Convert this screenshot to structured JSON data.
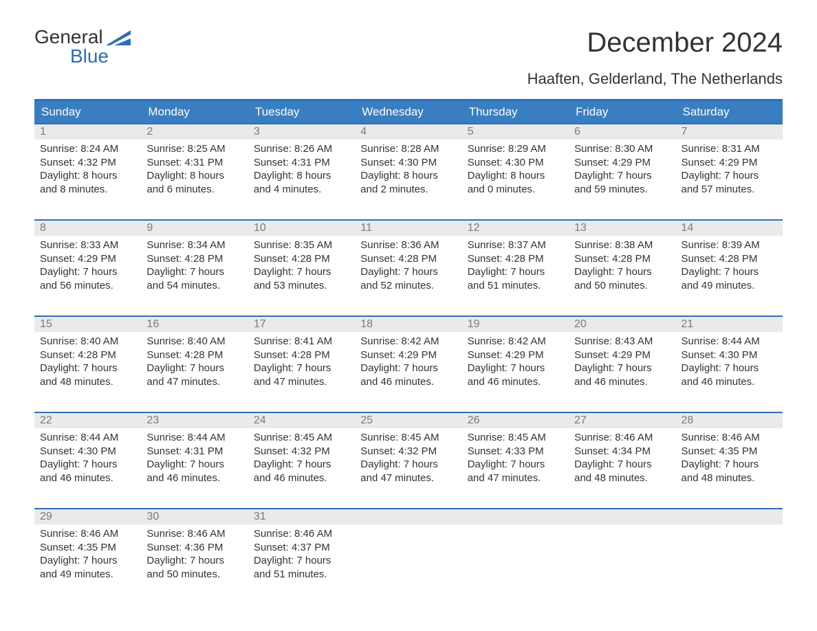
{
  "logo": {
    "text_top": "General",
    "text_bottom": "Blue",
    "flag_color": "#2c6fb5"
  },
  "title": "December 2024",
  "subtitle": "Haaften, Gelderland, The Netherlands",
  "colors": {
    "header_bg": "#3a7ec2",
    "header_text": "#ffffff",
    "accent_border": "#2c6fb5",
    "daynum_bg": "#e9eaeb",
    "daynum_text": "#7a7a7a",
    "body_text": "#333333",
    "background": "#ffffff"
  },
  "typography": {
    "title_fontsize": 40,
    "subtitle_fontsize": 22,
    "dayhead_fontsize": 17,
    "daynum_fontsize": 16,
    "detail_fontsize": 15
  },
  "day_headers": [
    "Sunday",
    "Monday",
    "Tuesday",
    "Wednesday",
    "Thursday",
    "Friday",
    "Saturday"
  ],
  "weeks": [
    [
      {
        "num": "1",
        "sunrise": "Sunrise: 8:24 AM",
        "sunset": "Sunset: 4:32 PM",
        "d1": "Daylight: 8 hours",
        "d2": "and 8 minutes."
      },
      {
        "num": "2",
        "sunrise": "Sunrise: 8:25 AM",
        "sunset": "Sunset: 4:31 PM",
        "d1": "Daylight: 8 hours",
        "d2": "and 6 minutes."
      },
      {
        "num": "3",
        "sunrise": "Sunrise: 8:26 AM",
        "sunset": "Sunset: 4:31 PM",
        "d1": "Daylight: 8 hours",
        "d2": "and 4 minutes."
      },
      {
        "num": "4",
        "sunrise": "Sunrise: 8:28 AM",
        "sunset": "Sunset: 4:30 PM",
        "d1": "Daylight: 8 hours",
        "d2": "and 2 minutes."
      },
      {
        "num": "5",
        "sunrise": "Sunrise: 8:29 AM",
        "sunset": "Sunset: 4:30 PM",
        "d1": "Daylight: 8 hours",
        "d2": "and 0 minutes."
      },
      {
        "num": "6",
        "sunrise": "Sunrise: 8:30 AM",
        "sunset": "Sunset: 4:29 PM",
        "d1": "Daylight: 7 hours",
        "d2": "and 59 minutes."
      },
      {
        "num": "7",
        "sunrise": "Sunrise: 8:31 AM",
        "sunset": "Sunset: 4:29 PM",
        "d1": "Daylight: 7 hours",
        "d2": "and 57 minutes."
      }
    ],
    [
      {
        "num": "8",
        "sunrise": "Sunrise: 8:33 AM",
        "sunset": "Sunset: 4:29 PM",
        "d1": "Daylight: 7 hours",
        "d2": "and 56 minutes."
      },
      {
        "num": "9",
        "sunrise": "Sunrise: 8:34 AM",
        "sunset": "Sunset: 4:28 PM",
        "d1": "Daylight: 7 hours",
        "d2": "and 54 minutes."
      },
      {
        "num": "10",
        "sunrise": "Sunrise: 8:35 AM",
        "sunset": "Sunset: 4:28 PM",
        "d1": "Daylight: 7 hours",
        "d2": "and 53 minutes."
      },
      {
        "num": "11",
        "sunrise": "Sunrise: 8:36 AM",
        "sunset": "Sunset: 4:28 PM",
        "d1": "Daylight: 7 hours",
        "d2": "and 52 minutes."
      },
      {
        "num": "12",
        "sunrise": "Sunrise: 8:37 AM",
        "sunset": "Sunset: 4:28 PM",
        "d1": "Daylight: 7 hours",
        "d2": "and 51 minutes."
      },
      {
        "num": "13",
        "sunrise": "Sunrise: 8:38 AM",
        "sunset": "Sunset: 4:28 PM",
        "d1": "Daylight: 7 hours",
        "d2": "and 50 minutes."
      },
      {
        "num": "14",
        "sunrise": "Sunrise: 8:39 AM",
        "sunset": "Sunset: 4:28 PM",
        "d1": "Daylight: 7 hours",
        "d2": "and 49 minutes."
      }
    ],
    [
      {
        "num": "15",
        "sunrise": "Sunrise: 8:40 AM",
        "sunset": "Sunset: 4:28 PM",
        "d1": "Daylight: 7 hours",
        "d2": "and 48 minutes."
      },
      {
        "num": "16",
        "sunrise": "Sunrise: 8:40 AM",
        "sunset": "Sunset: 4:28 PM",
        "d1": "Daylight: 7 hours",
        "d2": "and 47 minutes."
      },
      {
        "num": "17",
        "sunrise": "Sunrise: 8:41 AM",
        "sunset": "Sunset: 4:28 PM",
        "d1": "Daylight: 7 hours",
        "d2": "and 47 minutes."
      },
      {
        "num": "18",
        "sunrise": "Sunrise: 8:42 AM",
        "sunset": "Sunset: 4:29 PM",
        "d1": "Daylight: 7 hours",
        "d2": "and 46 minutes."
      },
      {
        "num": "19",
        "sunrise": "Sunrise: 8:42 AM",
        "sunset": "Sunset: 4:29 PM",
        "d1": "Daylight: 7 hours",
        "d2": "and 46 minutes."
      },
      {
        "num": "20",
        "sunrise": "Sunrise: 8:43 AM",
        "sunset": "Sunset: 4:29 PM",
        "d1": "Daylight: 7 hours",
        "d2": "and 46 minutes."
      },
      {
        "num": "21",
        "sunrise": "Sunrise: 8:44 AM",
        "sunset": "Sunset: 4:30 PM",
        "d1": "Daylight: 7 hours",
        "d2": "and 46 minutes."
      }
    ],
    [
      {
        "num": "22",
        "sunrise": "Sunrise: 8:44 AM",
        "sunset": "Sunset: 4:30 PM",
        "d1": "Daylight: 7 hours",
        "d2": "and 46 minutes."
      },
      {
        "num": "23",
        "sunrise": "Sunrise: 8:44 AM",
        "sunset": "Sunset: 4:31 PM",
        "d1": "Daylight: 7 hours",
        "d2": "and 46 minutes."
      },
      {
        "num": "24",
        "sunrise": "Sunrise: 8:45 AM",
        "sunset": "Sunset: 4:32 PM",
        "d1": "Daylight: 7 hours",
        "d2": "and 46 minutes."
      },
      {
        "num": "25",
        "sunrise": "Sunrise: 8:45 AM",
        "sunset": "Sunset: 4:32 PM",
        "d1": "Daylight: 7 hours",
        "d2": "and 47 minutes."
      },
      {
        "num": "26",
        "sunrise": "Sunrise: 8:45 AM",
        "sunset": "Sunset: 4:33 PM",
        "d1": "Daylight: 7 hours",
        "d2": "and 47 minutes."
      },
      {
        "num": "27",
        "sunrise": "Sunrise: 8:46 AM",
        "sunset": "Sunset: 4:34 PM",
        "d1": "Daylight: 7 hours",
        "d2": "and 48 minutes."
      },
      {
        "num": "28",
        "sunrise": "Sunrise: 8:46 AM",
        "sunset": "Sunset: 4:35 PM",
        "d1": "Daylight: 7 hours",
        "d2": "and 48 minutes."
      }
    ],
    [
      {
        "num": "29",
        "sunrise": "Sunrise: 8:46 AM",
        "sunset": "Sunset: 4:35 PM",
        "d1": "Daylight: 7 hours",
        "d2": "and 49 minutes."
      },
      {
        "num": "30",
        "sunrise": "Sunrise: 8:46 AM",
        "sunset": "Sunset: 4:36 PM",
        "d1": "Daylight: 7 hours",
        "d2": "and 50 minutes."
      },
      {
        "num": "31",
        "sunrise": "Sunrise: 8:46 AM",
        "sunset": "Sunset: 4:37 PM",
        "d1": "Daylight: 7 hours",
        "d2": "and 51 minutes."
      },
      {
        "num": "",
        "sunrise": "",
        "sunset": "",
        "d1": "",
        "d2": ""
      },
      {
        "num": "",
        "sunrise": "",
        "sunset": "",
        "d1": "",
        "d2": ""
      },
      {
        "num": "",
        "sunrise": "",
        "sunset": "",
        "d1": "",
        "d2": ""
      },
      {
        "num": "",
        "sunrise": "",
        "sunset": "",
        "d1": "",
        "d2": ""
      }
    ]
  ]
}
